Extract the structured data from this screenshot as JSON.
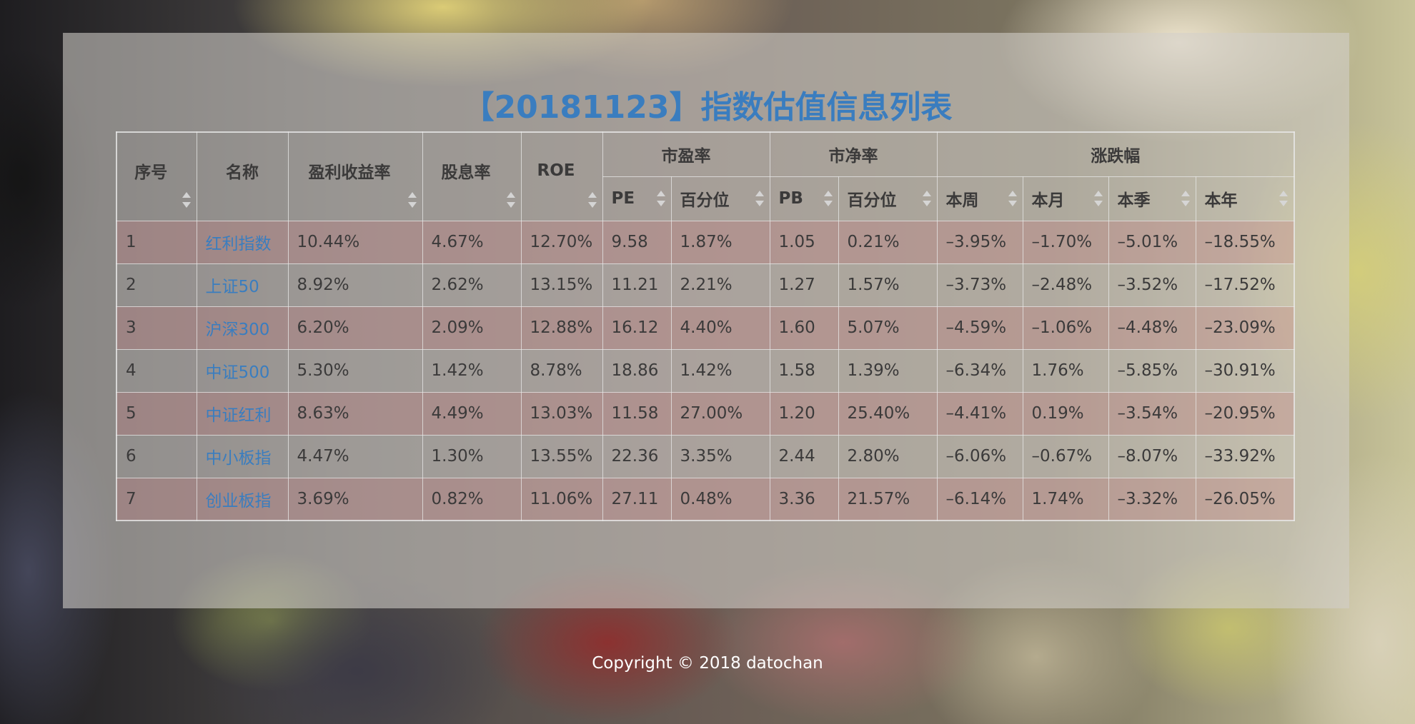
{
  "title": "【20181123】指数估值信息列表",
  "headers": {
    "index": "序号",
    "name": "名称",
    "earnings_yield": "盈利收益率",
    "dividend_yield": "股息率",
    "roe": "ROE",
    "pe_group": "市盈率",
    "pb_group": "市净率",
    "change_group": "涨跌幅",
    "pe": "PE",
    "pe_percentile": "百分位",
    "pb": "PB",
    "pb_percentile": "百分位",
    "week": "本周",
    "month": "本月",
    "quarter": "本季",
    "year": "本年"
  },
  "rows": [
    {
      "index": "1",
      "name": "红利指数",
      "earnings_yield": "10.44%",
      "dividend_yield": "4.67%",
      "roe": "12.70%",
      "pe": "9.58",
      "pe_percentile": "1.87%",
      "pb": "1.05",
      "pb_percentile": "0.21%",
      "week": "–3.95%",
      "month": "–1.70%",
      "quarter": "–5.01%",
      "year": "–18.55%"
    },
    {
      "index": "2",
      "name": "上证50",
      "earnings_yield": "8.92%",
      "dividend_yield": "2.62%",
      "roe": "13.15%",
      "pe": "11.21",
      "pe_percentile": "2.21%",
      "pb": "1.27",
      "pb_percentile": "1.57%",
      "week": "–3.73%",
      "month": "–2.48%",
      "quarter": "–3.52%",
      "year": "–17.52%"
    },
    {
      "index": "3",
      "name": "沪深300",
      "earnings_yield": "6.20%",
      "dividend_yield": "2.09%",
      "roe": "12.88%",
      "pe": "16.12",
      "pe_percentile": "4.40%",
      "pb": "1.60",
      "pb_percentile": "5.07%",
      "week": "–4.59%",
      "month": "–1.06%",
      "quarter": "–4.48%",
      "year": "–23.09%"
    },
    {
      "index": "4",
      "name": "中证500",
      "earnings_yield": "5.30%",
      "dividend_yield": "1.42%",
      "roe": "8.78%",
      "pe": "18.86",
      "pe_percentile": "1.42%",
      "pb": "1.58",
      "pb_percentile": "1.39%",
      "week": "–6.34%",
      "month": "1.76%",
      "quarter": "–5.85%",
      "year": "–30.91%"
    },
    {
      "index": "5",
      "name": "中证红利",
      "earnings_yield": "8.63%",
      "dividend_yield": "4.49%",
      "roe": "13.03%",
      "pe": "11.58",
      "pe_percentile": "27.00%",
      "pb": "1.20",
      "pb_percentile": "25.40%",
      "week": "–4.41%",
      "month": "0.19%",
      "quarter": "–3.54%",
      "year": "–20.95%"
    },
    {
      "index": "6",
      "name": "中小板指",
      "earnings_yield": "4.47%",
      "dividend_yield": "1.30%",
      "roe": "13.55%",
      "pe": "22.36",
      "pe_percentile": "3.35%",
      "pb": "2.44",
      "pb_percentile": "2.80%",
      "week": "–6.06%",
      "month": "–0.67%",
      "quarter": "–8.07%",
      "year": "–33.92%"
    },
    {
      "index": "7",
      "name": "创业板指",
      "earnings_yield": "3.69%",
      "dividend_yield": "0.82%",
      "roe": "11.06%",
      "pe": "27.11",
      "pe_percentile": "0.48%",
      "pb": "3.36",
      "pb_percentile": "21.57%",
      "week": "–6.14%",
      "month": "1.74%",
      "quarter": "–3.32%",
      "year": "–26.05%"
    }
  ],
  "footer": "Copyright © 2018 datochan"
}
